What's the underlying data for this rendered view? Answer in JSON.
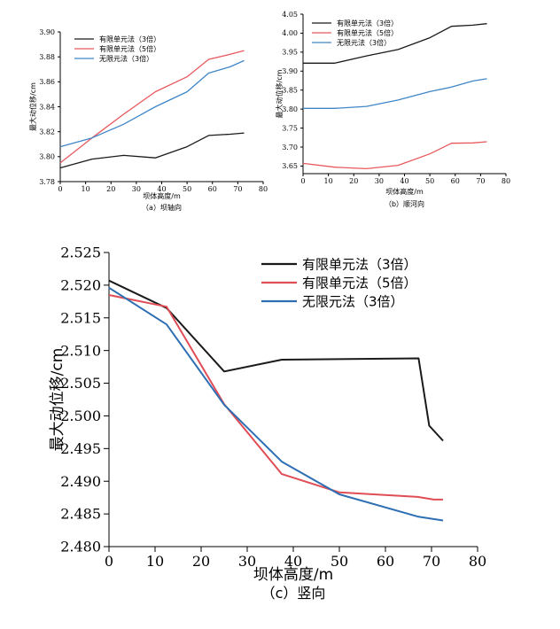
{
  "charts": [
    {
      "type": "line",
      "caption": "（a）坝轴向",
      "xlabel": "坝体高度/m",
      "ylabel": "最大动位移/cm",
      "xlim": [
        0,
        80
      ],
      "ylim": [
        3.78,
        3.9
      ],
      "xticks": [
        0,
        10,
        20,
        30,
        40,
        50,
        60,
        70,
        80
      ],
      "yticks": [
        3.78,
        3.8,
        3.82,
        3.84,
        3.86,
        3.88,
        3.9
      ],
      "ytick_decimals": 2,
      "legend_position": "top-left",
      "series": [
        {
          "name": "有限单元法（3倍）",
          "color": "#1a1a1a",
          "x": [
            0,
            12.5,
            25,
            37.5,
            50,
            58.5,
            67,
            72.5
          ],
          "y": [
            3.791,
            3.798,
            3.801,
            3.799,
            3.808,
            3.817,
            3.818,
            3.819
          ]
        },
        {
          "name": "有限单元法（5倍）",
          "color": "#e8595e",
          "x": [
            0,
            12.5,
            25,
            37.5,
            50,
            58.5,
            67,
            72.5
          ],
          "y": [
            3.795,
            3.815,
            3.834,
            3.852,
            3.864,
            3.878,
            3.882,
            3.885
          ]
        },
        {
          "name": "无限元法（3倍）",
          "color": "#3f86c8",
          "x": [
            0,
            12.5,
            25,
            37.5,
            50,
            58.5,
            67,
            72.5
          ],
          "y": [
            3.808,
            3.815,
            3.826,
            3.84,
            3.852,
            3.867,
            3.872,
            3.877
          ]
        }
      ]
    },
    {
      "type": "line",
      "caption": "（b）顺河向",
      "xlabel": "坝体高度/m",
      "ylabel": "最大动位移/cm",
      "xlim": [
        0,
        80
      ],
      "ylim": [
        3.63,
        4.05
      ],
      "xticks": [
        0,
        10,
        20,
        30,
        40,
        50,
        60,
        70,
        80
      ],
      "yticks": [
        3.65,
        3.7,
        3.75,
        3.8,
        3.85,
        3.9,
        3.95,
        4.0,
        4.05
      ],
      "ytick_decimals": 2,
      "legend_position": "top-left",
      "series": [
        {
          "name": "有限单元法（3倍）",
          "color": "#1a1a1a",
          "x": [
            0,
            12.5,
            25,
            37.5,
            50,
            58.5,
            67,
            72.5
          ],
          "y": [
            3.921,
            3.921,
            3.94,
            3.957,
            3.988,
            4.018,
            4.021,
            4.025
          ]
        },
        {
          "name": "有限单元法（5倍）",
          "color": "#e8595e",
          "x": [
            0,
            12.5,
            25,
            37.5,
            50,
            58.5,
            67,
            72.5
          ],
          "y": [
            3.657,
            3.647,
            3.643,
            3.652,
            3.682,
            3.71,
            3.711,
            3.714
          ]
        },
        {
          "name": "无限元法（3倍）",
          "color": "#3f86c8",
          "x": [
            0,
            12.5,
            25,
            37.5,
            50,
            58.5,
            67,
            72.5
          ],
          "y": [
            3.802,
            3.802,
            3.807,
            3.824,
            3.846,
            3.858,
            3.874,
            3.88
          ]
        }
      ]
    },
    {
      "type": "line",
      "caption": "（c）竖向",
      "xlabel": "坝体高度/m",
      "ylabel": "最大动位移/cm",
      "xlim": [
        0,
        80
      ],
      "ylim": [
        2.48,
        2.525
      ],
      "xticks": [
        0,
        10,
        20,
        30,
        40,
        50,
        60,
        70,
        80
      ],
      "yticks": [
        2.48,
        2.485,
        2.49,
        2.495,
        2.5,
        2.505,
        2.51,
        2.515,
        2.52,
        2.525
      ],
      "ytick_decimals": 3,
      "legend_position": "top-right",
      "series": [
        {
          "name": "有限单元法（3倍）",
          "color": "#1a1a1a",
          "x": [
            0,
            12.5,
            25,
            37.5,
            67.2,
            69.5,
            72.5
          ],
          "y": [
            2.5207,
            2.5165,
            2.5068,
            2.5086,
            2.5088,
            2.4985,
            2.4962
          ]
        },
        {
          "name": "有限单元法（5倍）",
          "color": "#e04d55",
          "x": [
            0,
            12.5,
            25,
            37.5,
            50,
            67,
            70.5,
            72.5
          ],
          "y": [
            2.5185,
            2.5167,
            2.5018,
            2.4911,
            2.4883,
            2.4876,
            2.4872,
            2.4872
          ]
        },
        {
          "name": "无限元法（3倍）",
          "color": "#2e6fb3",
          "x": [
            0,
            12.5,
            25,
            37.5,
            50,
            67,
            72.5
          ],
          "y": [
            2.5196,
            2.514,
            2.5017,
            2.493,
            2.488,
            2.4846,
            2.484
          ]
        }
      ]
    }
  ]
}
